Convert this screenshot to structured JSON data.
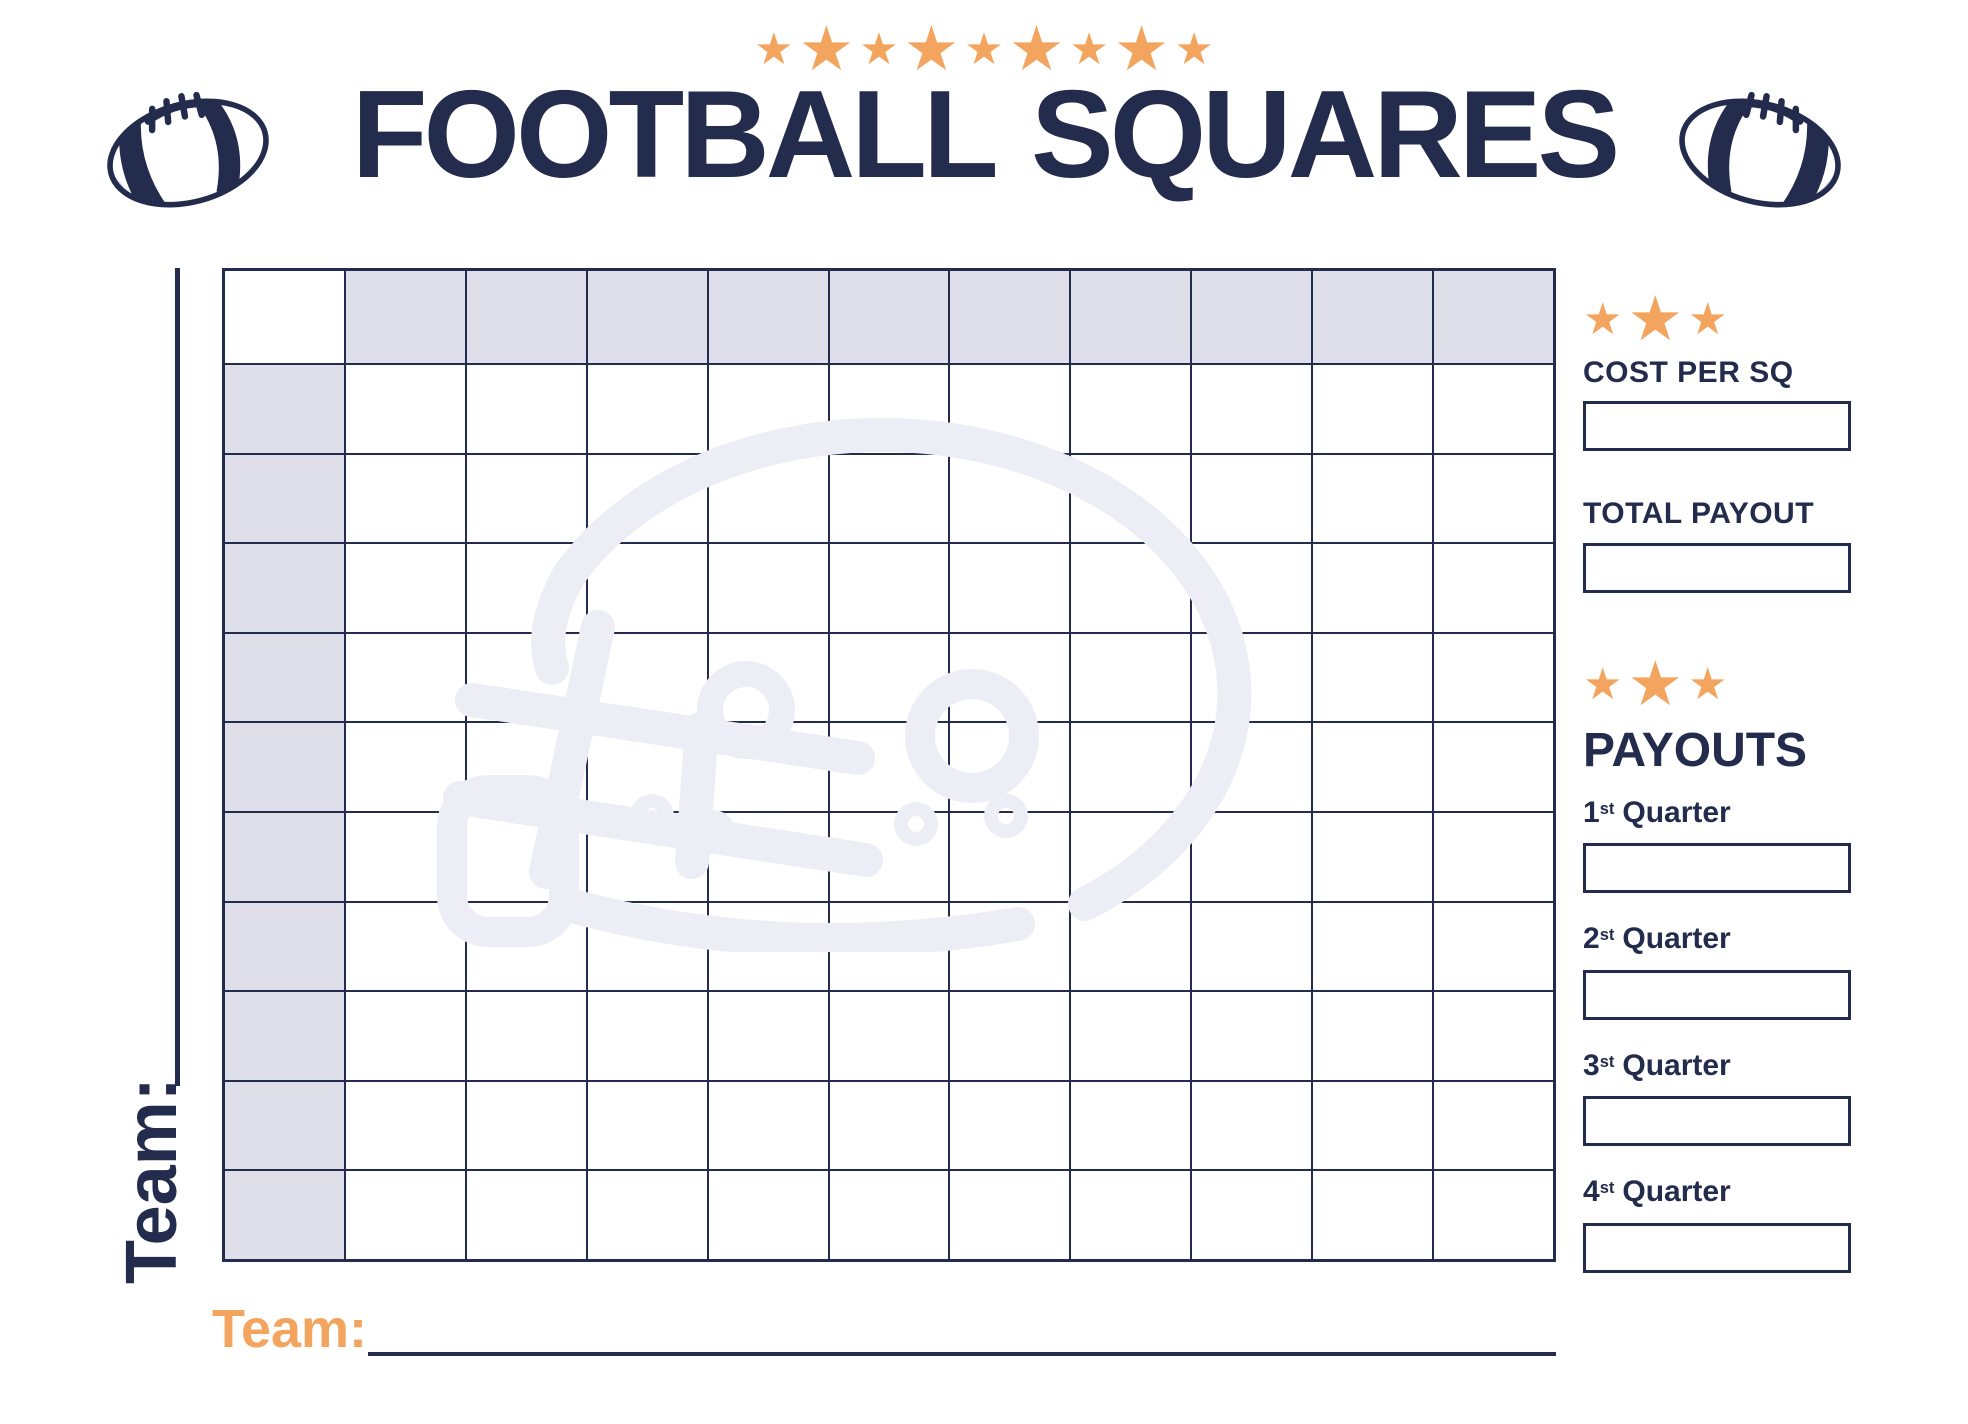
{
  "colors": {
    "navy": "#232C4C",
    "orange": "#F3A55F",
    "shaded_cell": "#DFDFE9",
    "watermark": "#EDEDF5"
  },
  "header": {
    "stars_count": 9,
    "title": "FOOTBALL SQUARES"
  },
  "grid": {
    "rows": 11,
    "cols": 11,
    "note": "top row and left column are shaded write-in number headers; all cells empty"
  },
  "team_left": {
    "label": "Team:",
    "value": ""
  },
  "team_bottom": {
    "label": "Team:",
    "value": ""
  },
  "sidebar": {
    "stars_count": 3,
    "cost": {
      "label": "COST PER SQ",
      "value": ""
    },
    "total": {
      "label": "TOTAL PAYOUT",
      "value": ""
    },
    "payouts_title": "PAYOUTS",
    "quarters": [
      {
        "num": "1",
        "suffix": "st",
        "word": "Quarter",
        "value": ""
      },
      {
        "num": "2",
        "suffix": "st",
        "word": "Quarter",
        "value": ""
      },
      {
        "num": "3",
        "suffix": "st",
        "word": "Quarter",
        "value": ""
      },
      {
        "num": "4",
        "suffix": "st",
        "word": "Quarter",
        "value": ""
      }
    ]
  }
}
